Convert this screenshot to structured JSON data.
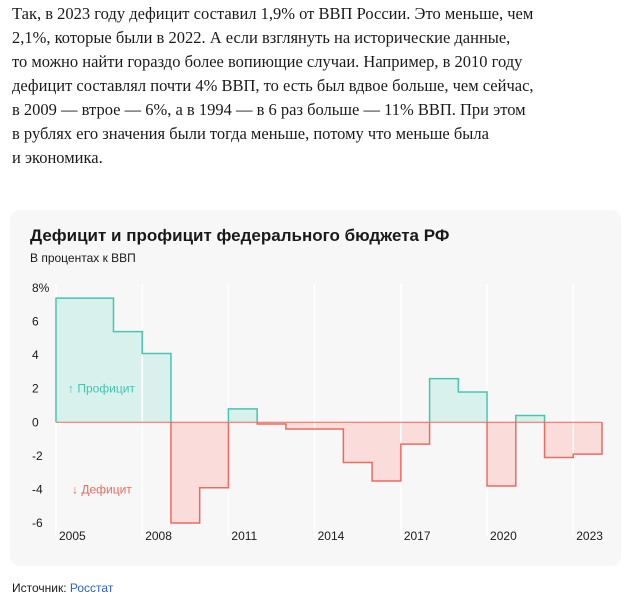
{
  "article": {
    "lines": [
      "Так, в 2023 году дефицит составил 1,9% от ВВП России. Это меньше, чем",
      "2,1%, которые были в 2022. А если взглянуть на исторические данные,",
      "то можно найти гораздо более вопиющие случаи. Например, в 2010 году",
      "дефицит составлял почти 4% ВВП, то есть был вдвое больше, чем сейчас,",
      "в 2009 — втрое — 6%, а в 1994 — в 6 раз больше — 11% ВВП. При этом",
      "в рублях его значения были тогда меньше, потому что меньше была",
      "и экономика."
    ]
  },
  "source": {
    "label": "Источник:",
    "link": "Росстат"
  },
  "chart_data": {
    "type": "bar",
    "title": "Дефицит и профицит федерального бюджета РФ",
    "subtitle": "В процентах к ВВП",
    "x": [
      2005,
      2006,
      2007,
      2008,
      2009,
      2010,
      2011,
      2012,
      2013,
      2014,
      2015,
      2016,
      2017,
      2018,
      2019,
      2020,
      2021,
      2022,
      2023
    ],
    "values": [
      7.4,
      7.4,
      5.4,
      4.1,
      -6.0,
      -3.9,
      0.8,
      -0.1,
      -0.4,
      -0.4,
      -2.4,
      -3.5,
      -1.3,
      2.6,
      1.8,
      -3.8,
      0.4,
      -2.1,
      -1.9
    ],
    "ylim": [
      -6.3,
      8
    ],
    "ytick_labels": [
      "8%",
      "6",
      "4",
      "2",
      "0",
      "-2",
      "-4",
      "-6"
    ],
    "ytick_values": [
      8,
      6,
      4,
      2,
      0,
      -2,
      -4,
      -6
    ],
    "xtick_labels": [
      "2005",
      "2008",
      "2011",
      "2014",
      "2017",
      "2020",
      "2023"
    ],
    "xtick_values": [
      2005,
      2008,
      2011,
      2014,
      2017,
      2020,
      2023
    ],
    "annotations": {
      "surplus": "↑ Профицит",
      "deficit": "↓ Дефицит"
    },
    "colors": {
      "surplus_fill": "#d8f1ec",
      "surplus_line": "#43c7b2",
      "deficit_fill": "#fadcda",
      "deficit_line": "#ec6b5f",
      "zero_line": "#ec6b5f",
      "grid": "#ffffff",
      "surplus_text": "#43c7b2",
      "deficit_text": "#ec6b5f"
    },
    "grid": true
  }
}
